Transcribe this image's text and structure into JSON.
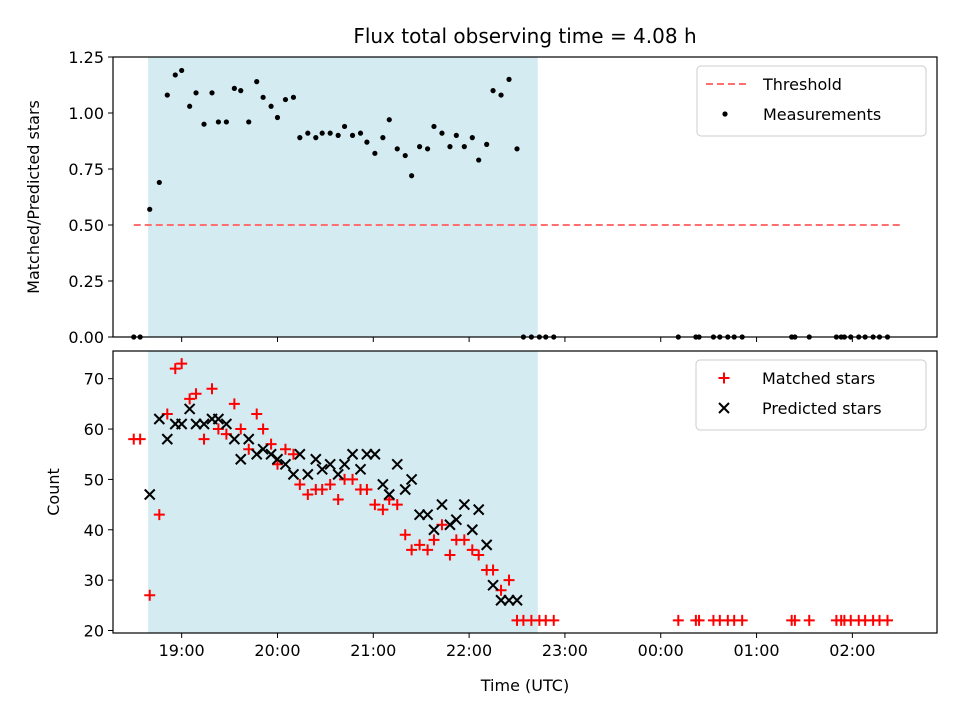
{
  "chart_data": [
    {
      "type": "scatter",
      "title": "Flux total observing time = 4.08 h",
      "xlabel": "",
      "ylabel": "Matched/Predicted stars",
      "ylim": [
        0,
        1.25
      ],
      "yticks": [
        "0.00",
        "0.25",
        "0.50",
        "0.75",
        "1.00",
        "1.25"
      ],
      "legend_position": "top-right",
      "grid": false,
      "shaded_interval": [
        "18:39",
        "22:43"
      ],
      "threshold": {
        "name": "Threshold",
        "y": 0.5,
        "x": [
          "18:30",
          "02:30"
        ],
        "color": "#ff6f6f",
        "style": "dashed"
      },
      "series": [
        {
          "name": "Measurements",
          "marker": "dot",
          "color": "#000000",
          "points": [
            [
              "18:30",
              0
            ],
            [
              "18:34",
              0
            ],
            [
              "18:40",
              0.57
            ],
            [
              "18:46",
              0.69
            ],
            [
              "18:51",
              1.08
            ],
            [
              "18:56",
              1.17
            ],
            [
              "19:00",
              1.19
            ],
            [
              "19:05",
              1.03
            ],
            [
              "19:09",
              1.09
            ],
            [
              "19:14",
              0.95
            ],
            [
              "19:19",
              1.09
            ],
            [
              "19:23",
              0.96
            ],
            [
              "19:28",
              0.96
            ],
            [
              "19:33",
              1.11
            ],
            [
              "19:37",
              1.1
            ],
            [
              "19:42",
              0.96
            ],
            [
              "19:47",
              1.14
            ],
            [
              "19:51",
              1.07
            ],
            [
              "19:56",
              1.03
            ],
            [
              "20:00",
              0.98
            ],
            [
              "20:05",
              1.06
            ],
            [
              "20:10",
              1.07
            ],
            [
              "20:14",
              0.89
            ],
            [
              "20:19",
              0.91
            ],
            [
              "20:24",
              0.89
            ],
            [
              "20:28",
              0.91
            ],
            [
              "20:33",
              0.91
            ],
            [
              "20:38",
              0.9
            ],
            [
              "20:42",
              0.94
            ],
            [
              "20:47",
              0.9
            ],
            [
              "20:52",
              0.91
            ],
            [
              "20:56",
              0.87
            ],
            [
              "21:01",
              0.82
            ],
            [
              "21:06",
              0.89
            ],
            [
              "21:10",
              0.97
            ],
            [
              "21:15",
              0.84
            ],
            [
              "21:20",
              0.81
            ],
            [
              "21:24",
              0.72
            ],
            [
              "21:29",
              0.85
            ],
            [
              "21:34",
              0.84
            ],
            [
              "21:38",
              0.94
            ],
            [
              "21:43",
              0.91
            ],
            [
              "21:48",
              0.85
            ],
            [
              "21:52",
              0.9
            ],
            [
              "21:57",
              0.85
            ],
            [
              "22:02",
              0.89
            ],
            [
              "22:06",
              0.79
            ],
            [
              "22:11",
              0.86
            ],
            [
              "22:15",
              1.1
            ],
            [
              "22:20",
              1.08
            ],
            [
              "22:25",
              1.15
            ],
            [
              "22:30",
              0.84
            ],
            [
              "22:34",
              0
            ],
            [
              "22:39",
              0
            ],
            [
              "22:44",
              0
            ],
            [
              "22:48",
              0
            ],
            [
              "22:53",
              0
            ],
            [
              "00:11",
              0
            ],
            [
              "00:22",
              0
            ],
            [
              "00:24",
              0
            ],
            [
              "00:33",
              0
            ],
            [
              "00:37",
              0
            ],
            [
              "00:42",
              0
            ],
            [
              "00:46",
              0
            ],
            [
              "00:51",
              0
            ],
            [
              "01:22",
              0
            ],
            [
              "01:24",
              0
            ],
            [
              "01:33",
              0
            ],
            [
              "01:50",
              0
            ],
            [
              "01:53",
              0
            ],
            [
              "01:55",
              0
            ],
            [
              "01:59",
              0
            ],
            [
              "02:04",
              0
            ],
            [
              "02:08",
              0
            ],
            [
              "02:13",
              0
            ],
            [
              "02:17",
              0
            ],
            [
              "02:22",
              0
            ]
          ]
        }
      ]
    },
    {
      "type": "scatter",
      "title": "",
      "xlabel": "Time (UTC)",
      "ylabel": "Count",
      "ylim": [
        20,
        75
      ],
      "yticks": [
        "20",
        "30",
        "40",
        "50",
        "60",
        "70"
      ],
      "xticks": [
        "19:00",
        "20:00",
        "21:00",
        "22:00",
        "23:00",
        "00:00",
        "01:00",
        "02:00"
      ],
      "legend_position": "top-right",
      "grid": false,
      "shaded_interval": [
        "18:39",
        "22:43"
      ],
      "series": [
        {
          "name": "Matched stars",
          "marker": "plus",
          "color": "#ff0000",
          "points": [
            [
              "18:30",
              58
            ],
            [
              "18:34",
              58
            ],
            [
              "18:40",
              27
            ],
            [
              "18:46",
              43
            ],
            [
              "18:51",
              63
            ],
            [
              "18:56",
              72
            ],
            [
              "19:00",
              73
            ],
            [
              "19:05",
              66
            ],
            [
              "19:09",
              67
            ],
            [
              "19:14",
              58
            ],
            [
              "19:19",
              68
            ],
            [
              "19:23",
              60
            ],
            [
              "19:28",
              59
            ],
            [
              "19:33",
              65
            ],
            [
              "19:37",
              60
            ],
            [
              "19:42",
              56
            ],
            [
              "19:47",
              63
            ],
            [
              "19:51",
              60
            ],
            [
              "19:56",
              57
            ],
            [
              "20:00",
              53
            ],
            [
              "20:05",
              56
            ],
            [
              "20:10",
              55
            ],
            [
              "20:14",
              49
            ],
            [
              "20:19",
              47
            ],
            [
              "20:24",
              48
            ],
            [
              "20:28",
              48
            ],
            [
              "20:33",
              49
            ],
            [
              "20:38",
              46
            ],
            [
              "20:42",
              50
            ],
            [
              "20:47",
              50
            ],
            [
              "20:52",
              48
            ],
            [
              "20:56",
              48
            ],
            [
              "21:01",
              45
            ],
            [
              "21:06",
              44
            ],
            [
              "21:10",
              46
            ],
            [
              "21:15",
              45
            ],
            [
              "21:20",
              39
            ],
            [
              "21:24",
              36
            ],
            [
              "21:29",
              37
            ],
            [
              "21:34",
              36
            ],
            [
              "21:38",
              38
            ],
            [
              "21:43",
              41
            ],
            [
              "21:48",
              35
            ],
            [
              "21:52",
              38
            ],
            [
              "21:57",
              38
            ],
            [
              "22:02",
              36
            ],
            [
              "22:06",
              35
            ],
            [
              "22:11",
              32
            ],
            [
              "22:15",
              32
            ],
            [
              "22:20",
              28
            ],
            [
              "22:25",
              30
            ],
            [
              "22:30",
              22
            ],
            [
              "22:34",
              22
            ],
            [
              "22:39",
              22
            ],
            [
              "22:44",
              22
            ],
            [
              "22:48",
              22
            ],
            [
              "22:53",
              22
            ],
            [
              "00:11",
              22
            ],
            [
              "00:22",
              22
            ],
            [
              "00:24",
              22
            ],
            [
              "00:33",
              22
            ],
            [
              "00:37",
              22
            ],
            [
              "00:42",
              22
            ],
            [
              "00:46",
              22
            ],
            [
              "00:51",
              22
            ],
            [
              "01:22",
              22
            ],
            [
              "01:24",
              22
            ],
            [
              "01:33",
              22
            ],
            [
              "01:50",
              22
            ],
            [
              "01:53",
              22
            ],
            [
              "01:55",
              22
            ],
            [
              "01:59",
              22
            ],
            [
              "02:04",
              22
            ],
            [
              "02:08",
              22
            ],
            [
              "02:13",
              22
            ],
            [
              "02:17",
              22
            ],
            [
              "02:22",
              22
            ]
          ]
        },
        {
          "name": "Predicted stars",
          "marker": "x",
          "color": "#000000",
          "points": [
            [
              "18:40",
              47
            ],
            [
              "18:46",
              62
            ],
            [
              "18:51",
              58
            ],
            [
              "18:56",
              61
            ],
            [
              "19:00",
              61
            ],
            [
              "19:05",
              64
            ],
            [
              "19:09",
              61
            ],
            [
              "19:14",
              61
            ],
            [
              "19:19",
              62
            ],
            [
              "19:23",
              62
            ],
            [
              "19:28",
              61
            ],
            [
              "19:33",
              58
            ],
            [
              "19:37",
              54
            ],
            [
              "19:42",
              58
            ],
            [
              "19:47",
              55
            ],
            [
              "19:51",
              56
            ],
            [
              "19:56",
              55
            ],
            [
              "20:00",
              54
            ],
            [
              "20:05",
              53
            ],
            [
              "20:10",
              51
            ],
            [
              "20:14",
              55
            ],
            [
              "20:19",
              51
            ],
            [
              "20:24",
              54
            ],
            [
              "20:28",
              52
            ],
            [
              "20:33",
              53
            ],
            [
              "20:38",
              51
            ],
            [
              "20:42",
              53
            ],
            [
              "20:47",
              55
            ],
            [
              "20:52",
              52
            ],
            [
              "20:56",
              55
            ],
            [
              "21:01",
              55
            ],
            [
              "21:06",
              49
            ],
            [
              "21:10",
              47
            ],
            [
              "21:15",
              53
            ],
            [
              "21:20",
              48
            ],
            [
              "21:24",
              50
            ],
            [
              "21:29",
              43
            ],
            [
              "21:34",
              43
            ],
            [
              "21:38",
              40
            ],
            [
              "21:43",
              45
            ],
            [
              "21:48",
              41
            ],
            [
              "21:52",
              42
            ],
            [
              "21:57",
              45
            ],
            [
              "22:02",
              40
            ],
            [
              "22:06",
              44
            ],
            [
              "22:11",
              37
            ],
            [
              "22:15",
              29
            ],
            [
              "22:20",
              26
            ],
            [
              "22:25",
              26
            ],
            [
              "22:30",
              26
            ]
          ]
        }
      ]
    }
  ]
}
